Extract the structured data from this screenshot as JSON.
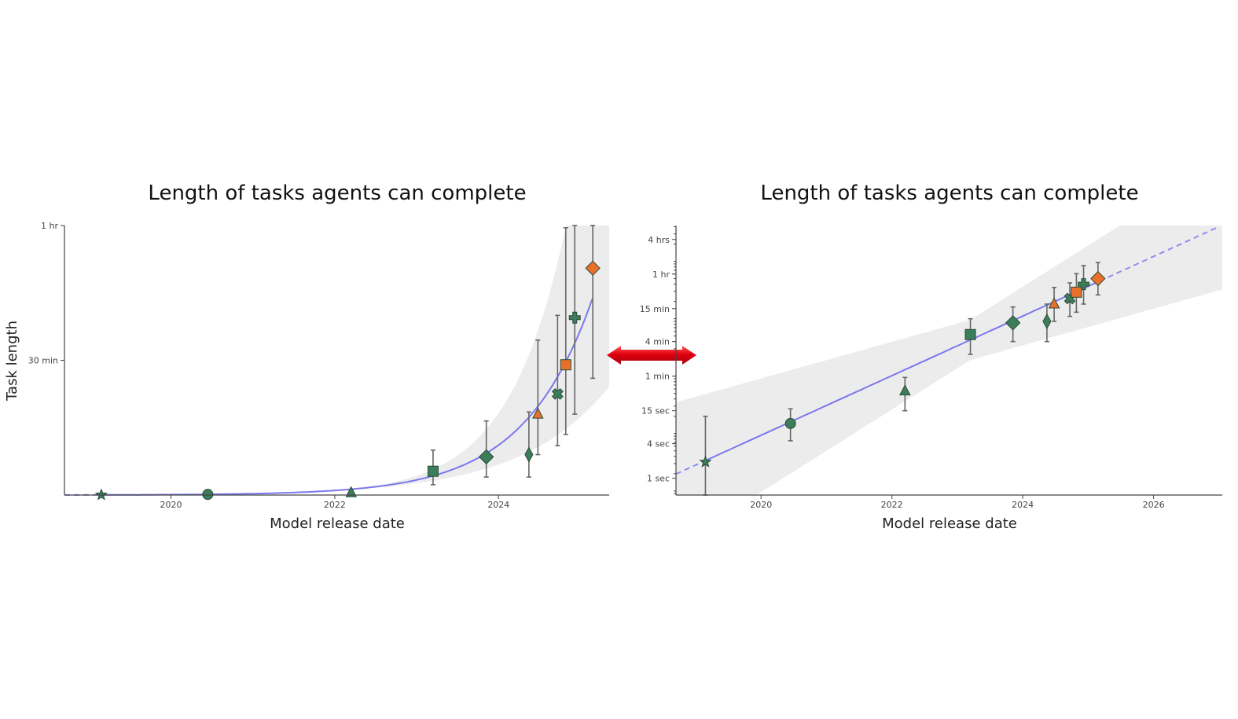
{
  "chart_data": [
    {
      "type": "scatter",
      "scale": "linear",
      "title": "Length of tasks agents can complete",
      "xlabel": "Model release date",
      "ylabel": "Task length",
      "x_ticks": [
        2020,
        2022,
        2024
      ],
      "y_tick_labels": [
        {
          "value_minutes": 30,
          "label": "30 min"
        },
        {
          "value_minutes": 60,
          "label": "1 hr"
        }
      ],
      "xlim": [
        2018.7,
        2025.35
      ],
      "ylim_minutes": [
        0,
        60
      ],
      "fit": {
        "type": "exponential",
        "style": "solid",
        "color": "#7b78ee",
        "band": "confidence interval (gray)"
      },
      "colors": {
        "green": "#3c7d5a",
        "orange": "#e8702a"
      },
      "points": [
        {
          "x": 2019.15,
          "y": 0.04,
          "lo": 0.01,
          "hi": 0.15,
          "marker": "star",
          "color": "green"
        },
        {
          "x": 2020.45,
          "y": 0.15,
          "lo": 0.08,
          "hi": 0.25,
          "marker": "circle",
          "color": "green"
        },
        {
          "x": 2022.2,
          "y": 0.5,
          "lo": 0.2,
          "hi": 1.0,
          "marker": "triangle",
          "color": "green"
        },
        {
          "x": 2023.2,
          "y": 5.3,
          "lo": 2.3,
          "hi": 10.0,
          "marker": "square",
          "color": "green"
        },
        {
          "x": 2023.85,
          "y": 8.5,
          "lo": 4.0,
          "hi": 16.5,
          "marker": "diamond",
          "color": "green"
        },
        {
          "x": 2024.37,
          "y": 9.0,
          "lo": 4.0,
          "hi": 18.5,
          "marker": "thin-diamond",
          "color": "green"
        },
        {
          "x": 2024.48,
          "y": 18.0,
          "lo": 9.0,
          "hi": 34.5,
          "marker": "triangle",
          "color": "orange"
        },
        {
          "x": 2024.72,
          "y": 22.5,
          "lo": 11.0,
          "hi": 40.0,
          "marker": "x",
          "color": "green"
        },
        {
          "x": 2024.82,
          "y": 29.0,
          "lo": 13.5,
          "hi": 59.5,
          "marker": "square",
          "color": "orange"
        },
        {
          "x": 2024.93,
          "y": 39.5,
          "lo": 18.0,
          "hi": 60.0,
          "marker": "plus",
          "color": "green"
        },
        {
          "x": 2025.15,
          "y": 50.5,
          "lo": 26.0,
          "hi": 60.0,
          "marker": "diamond",
          "color": "orange"
        }
      ]
    },
    {
      "type": "scatter",
      "scale": "log",
      "title": "Length of tasks agents can complete",
      "xlabel": "Model release date",
      "ylabel": "",
      "x_ticks": [
        2020,
        2022,
        2024,
        2026
      ],
      "y_tick_labels": [
        {
          "value_minutes": 0.016667,
          "label": "1 sec"
        },
        {
          "value_minutes": 0.066667,
          "label": "4 sec"
        },
        {
          "value_minutes": 0.25,
          "label": "15 sec"
        },
        {
          "value_minutes": 1,
          "label": "1 min"
        },
        {
          "value_minutes": 4,
          "label": "4 min"
        },
        {
          "value_minutes": 15,
          "label": "15 min"
        },
        {
          "value_minutes": 60,
          "label": "1 hr"
        },
        {
          "value_minutes": 240,
          "label": "4 hrs"
        }
      ],
      "xlim": [
        2018.7,
        2027.05
      ],
      "ylim_minutes": [
        0.0085,
        420
      ],
      "fit": {
        "type": "exponential",
        "style": "solid, extrapolated dashed",
        "color": "#7b78ee",
        "band": "confidence interval (gray)"
      },
      "colors": {
        "green": "#3c7d5a",
        "orange": "#e8702a"
      },
      "points": [
        {
          "x": 2019.15,
          "y": 0.032,
          "lo": 0.0085,
          "hi": 0.2,
          "marker": "star",
          "color": "green"
        },
        {
          "x": 2020.45,
          "y": 0.15,
          "lo": 0.075,
          "hi": 0.27,
          "marker": "circle",
          "color": "green"
        },
        {
          "x": 2022.2,
          "y": 0.55,
          "lo": 0.25,
          "hi": 0.95,
          "marker": "triangle",
          "color": "green"
        },
        {
          "x": 2023.2,
          "y": 5.3,
          "lo": 2.4,
          "hi": 10.0,
          "marker": "square",
          "color": "green"
        },
        {
          "x": 2023.85,
          "y": 8.5,
          "lo": 4.0,
          "hi": 16.0,
          "marker": "diamond",
          "color": "green"
        },
        {
          "x": 2024.37,
          "y": 9.0,
          "lo": 4.0,
          "hi": 18.0,
          "marker": "thin-diamond",
          "color": "green"
        },
        {
          "x": 2024.48,
          "y": 18.0,
          "lo": 9.0,
          "hi": 35.0,
          "marker": "triangle",
          "color": "orange"
        },
        {
          "x": 2024.72,
          "y": 22.5,
          "lo": 11.0,
          "hi": 42.0,
          "marker": "x",
          "color": "green"
        },
        {
          "x": 2024.82,
          "y": 29.0,
          "lo": 13.0,
          "hi": 61.0,
          "marker": "square",
          "color": "orange"
        },
        {
          "x": 2024.93,
          "y": 40.0,
          "lo": 18.0,
          "hi": 84.0,
          "marker": "plus",
          "color": "green"
        },
        {
          "x": 2025.15,
          "y": 50.0,
          "lo": 26.0,
          "hi": 95.0,
          "marker": "diamond",
          "color": "orange"
        }
      ]
    }
  ],
  "connector": {
    "icon": "double-arrow-icon",
    "color": "#e0000f"
  }
}
